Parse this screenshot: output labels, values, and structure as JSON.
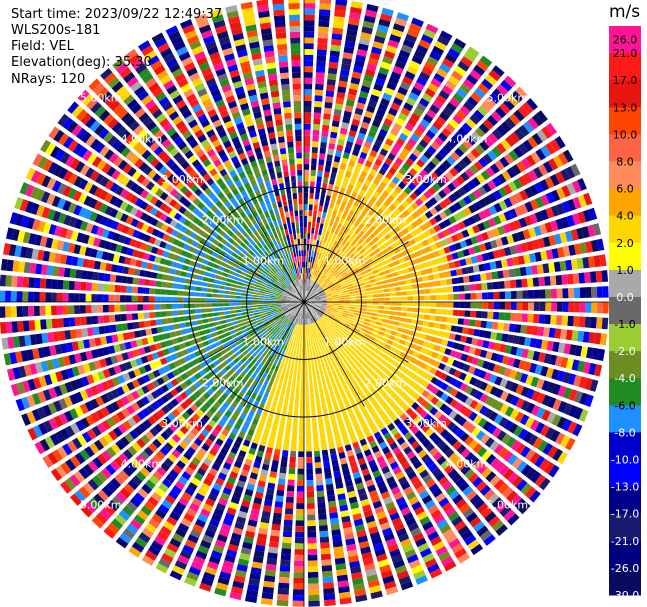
{
  "header": {
    "start_time": "Start time: 2023/09/22 12:49:37",
    "instrument": "WLS200s-181",
    "field": "Field: VEL",
    "elevation": "Elevation(deg): 35.30",
    "nrays": "NRays: 120"
  },
  "chart_data": {
    "type": "heatmap",
    "projection": "polar PPI",
    "field": "VEL",
    "unit": "m/s",
    "n_rays": 120,
    "elevation_deg": 35.3,
    "range_rings_km": [
      1.0,
      2.0,
      3.0,
      4.0,
      5.0
    ],
    "ring_labels": [
      "1.00km",
      "2.00km",
      "3.00km",
      "4.00km",
      "5.00km"
    ],
    "max_range_km": 5.3,
    "azimuth_spokes_deg": [
      0,
      30,
      60,
      90,
      120,
      150,
      180,
      210,
      240,
      270,
      300,
      330
    ],
    "colorbar": {
      "title": "m/s",
      "tick_labels": [
        "26.0",
        "21.0",
        "17.0",
        "13.0",
        "10.0",
        "8.0",
        "6.0",
        "4.0",
        "2.0",
        "1.0",
        "0.0",
        "-1.0",
        "-2.0",
        "-4.0",
        "-6.0",
        "-8.0",
        "-10.0",
        "-13.0",
        "-17.0",
        "-21.0",
        "-26.0",
        "-30.0"
      ],
      "colors": [
        "#ff1493",
        "#ff1a1a",
        "#e8150f",
        "#ff4500",
        "#ff6347",
        "#ff8c5a",
        "#ffa500",
        "#ffd700",
        "#ffff00",
        "#a9a9a9",
        "#696969",
        "#9acd32",
        "#6b8e23",
        "#228b22",
        "#1e90ff",
        "#0000cd",
        "#0000ff",
        "#00008b",
        "#191970",
        "#000080",
        "#0a0a60"
      ]
    },
    "velocity_regions": [
      {
        "azimuth_from_deg": 15,
        "azimuth_to_deg": 120,
        "range_from_km": 0.4,
        "range_to_km": 2.6,
        "values_m_s": [
          2.0,
          6.0
        ]
      },
      {
        "azimuth_from_deg": 120,
        "azimuth_to_deg": 200,
        "range_from_km": 0.4,
        "range_to_km": 2.6,
        "values_m_s": [
          2.0,
          4.0
        ]
      },
      {
        "azimuth_from_deg": 200,
        "azimuth_to_deg": 345,
        "range_from_km": 0.4,
        "range_to_km": 2.6,
        "values_m_s": [
          -8.0,
          -2.0
        ]
      },
      {
        "azimuth_from_deg": 0,
        "azimuth_to_deg": 360,
        "range_from_km": 0.0,
        "range_to_km": 0.4,
        "values_m_s": [
          -1.0,
          1.0
        ]
      },
      {
        "azimuth_from_deg": 0,
        "azimuth_to_deg": 360,
        "range_from_km": 2.6,
        "range_to_km": 5.3,
        "values_m_s": [
          -30.0,
          26.0
        ],
        "note": "noise"
      }
    ]
  }
}
